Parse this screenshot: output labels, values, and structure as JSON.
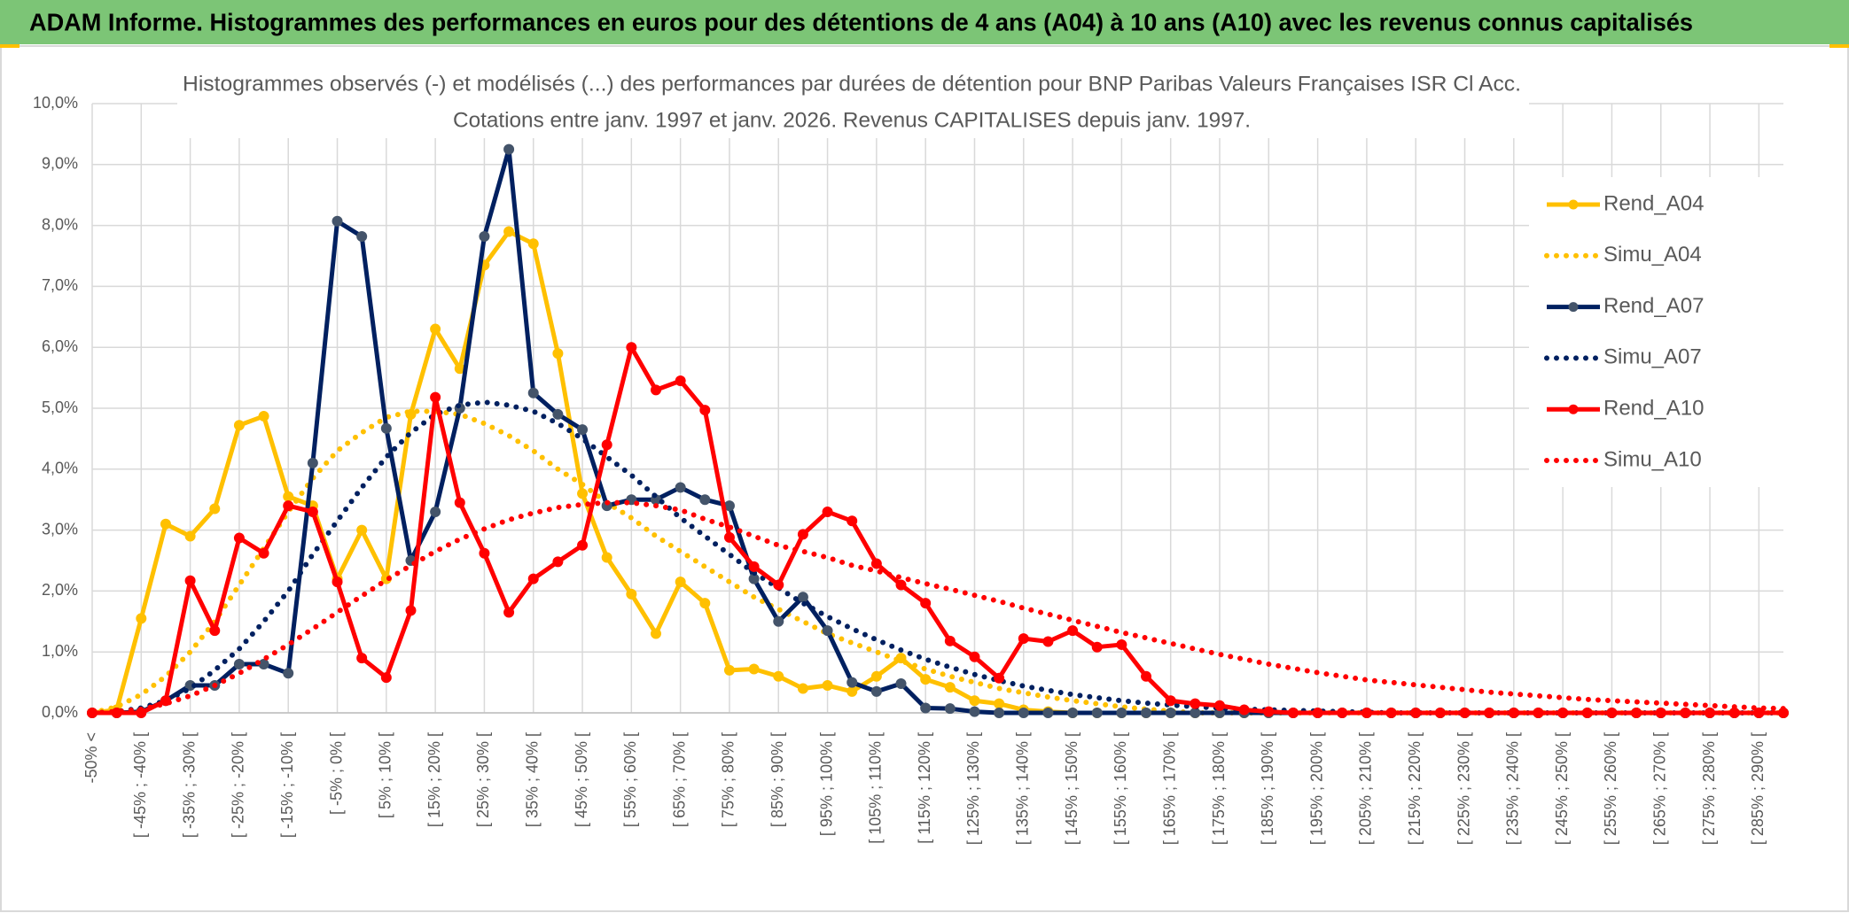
{
  "header": {
    "title": "ADAM Informe. Histogrammes des performances en euros pour des détentions de 4 ans (A04) à 10 ans (A10) avec les revenus connus capitalisés"
  },
  "chart_data": {
    "type": "line",
    "title": "Histogrammes observés (-) et modélisés (...) des performances par durées de détention pour BNP Paribas Valeurs Françaises ISR Cl Acc.",
    "subtitle": "Cotations entre janv. 1997 et janv. 2026. Revenus CAPITALISES depuis janv. 1997.",
    "categories": [
      "-50% <",
      null,
      "[ -45% ; -40% [",
      null,
      "[ -35% ; -30% [",
      null,
      "[ -25% ; -20% [",
      null,
      "[ -15% ; -10% [",
      null,
      "[ -5% ; 0% [",
      null,
      "[ 5% ; 10% [",
      null,
      "[ 15% ; 20% [",
      null,
      "[ 25% ; 30% [",
      null,
      "[ 35% ; 40% [",
      null,
      "[ 45% ; 50% [",
      null,
      "[ 55% ; 60% [",
      null,
      "[ 65% ; 70% [",
      null,
      "[ 75% ; 80% [",
      null,
      "[ 85% ; 90% [",
      null,
      "[ 95% ; 100% [",
      null,
      "[ 105% ; 110% [",
      null,
      "[ 115% ; 120% [",
      null,
      "[ 125% ; 130% [",
      null,
      "[ 135% ; 140% [",
      null,
      "[ 145% ; 150% [",
      null,
      "[ 155% ; 160% [",
      null,
      "[ 165% ; 170% [",
      null,
      "[ 175% ; 180% [",
      null,
      "[ 185% ; 190% [",
      null,
      "[ 195% ; 200% [",
      null,
      "[ 205% ; 210% [",
      null,
      "[ 215% ; 220% [",
      null,
      "[ 225% ; 230% [",
      null,
      "[ 235% ; 240% [",
      null,
      "[ 245% ; 250% [",
      null,
      "[ 255% ; 260% [",
      null,
      "[ 265% ; 270% [",
      null,
      "[ 275% ; 280% [",
      null,
      "[ 285% ; 290% [",
      null
    ],
    "series": [
      {
        "name": "Rend_A04",
        "color": "#ffc000",
        "style": "solid",
        "marker": "#ffc000",
        "values": [
          0,
          0.05,
          1.55,
          3.1,
          2.9,
          3.35,
          4.72,
          4.87,
          3.55,
          3.4,
          2.2,
          3.0,
          2.2,
          4.9,
          6.3,
          5.65,
          7.35,
          7.9,
          7.7,
          5.9,
          3.6,
          2.55,
          1.95,
          1.3,
          2.15,
          1.8,
          0.7,
          0.72,
          0.6,
          0.4,
          0.45,
          0.35,
          0.6,
          0.9,
          0.55,
          0.42,
          0.2,
          0.15,
          0.05,
          0.02,
          0,
          0,
          0,
          0,
          0,
          0,
          0,
          0,
          0,
          0,
          0,
          0,
          0,
          0,
          0,
          0,
          0,
          0,
          0,
          0,
          0,
          0,
          0,
          0,
          0,
          0,
          0,
          0,
          0,
          0
        ]
      },
      {
        "name": "Simu_A04",
        "color": "#ffc000",
        "style": "dotted",
        "values": [
          0,
          0.1,
          0.3,
          0.6,
          1.0,
          1.5,
          2.1,
          2.7,
          3.3,
          3.85,
          4.3,
          4.6,
          4.85,
          4.95,
          4.95,
          4.9,
          4.75,
          4.55,
          4.3,
          4.0,
          3.75,
          3.45,
          3.2,
          2.9,
          2.65,
          2.4,
          2.15,
          1.9,
          1.7,
          1.5,
          1.3,
          1.15,
          1.0,
          0.85,
          0.72,
          0.6,
          0.5,
          0.4,
          0.33,
          0.26,
          0.2,
          0.15,
          0.1,
          0.06,
          0.03,
          0,
          0,
          0,
          0,
          0,
          0,
          0,
          0,
          0,
          0,
          0,
          0,
          0,
          0,
          0,
          0,
          0,
          0,
          0,
          0,
          0,
          0,
          0,
          0,
          0
        ]
      },
      {
        "name": "Rend_A07",
        "color": "#002060",
        "style": "solid",
        "marker": "#44546a",
        "values": [
          0,
          0,
          0.02,
          0.2,
          0.45,
          0.45,
          0.8,
          0.8,
          0.65,
          4.1,
          8.07,
          7.82,
          4.67,
          2.5,
          3.3,
          5.0,
          7.82,
          9.25,
          5.25,
          4.9,
          4.65,
          3.4,
          3.5,
          3.5,
          3.7,
          3.5,
          3.4,
          2.2,
          1.5,
          1.9,
          1.35,
          0.5,
          0.35,
          0.48,
          0.08,
          0.07,
          0.02,
          0,
          0,
          0,
          0,
          0,
          0,
          0,
          0,
          0,
          0,
          0,
          0,
          0,
          0,
          0,
          0,
          0,
          0,
          0,
          0,
          0,
          0,
          0,
          0,
          0,
          0,
          0,
          0,
          0,
          0,
          0,
          0,
          0
        ]
      },
      {
        "name": "Simu_A07",
        "color": "#002060",
        "style": "dotted",
        "values": [
          0,
          0.02,
          0.08,
          0.2,
          0.4,
          0.7,
          1.05,
          1.5,
          2.0,
          2.6,
          3.15,
          3.7,
          4.2,
          4.6,
          4.9,
          5.05,
          5.1,
          5.05,
          4.95,
          4.75,
          4.5,
          4.2,
          3.9,
          3.55,
          3.2,
          2.9,
          2.6,
          2.3,
          2.05,
          1.8,
          1.58,
          1.38,
          1.2,
          1.03,
          0.88,
          0.75,
          0.63,
          0.53,
          0.44,
          0.37,
          0.3,
          0.25,
          0.2,
          0.16,
          0.13,
          0.1,
          0.08,
          0.06,
          0.05,
          0.04,
          0.03,
          0.02,
          0.01,
          0,
          0,
          0,
          0,
          0,
          0,
          0,
          0,
          0,
          0,
          0,
          0,
          0,
          0,
          0,
          0,
          0
        ]
      },
      {
        "name": "Rend_A10",
        "color": "#ff0000",
        "style": "solid",
        "marker": "#ff0000",
        "values": [
          0,
          0,
          0,
          0.2,
          2.17,
          1.35,
          2.87,
          2.62,
          3.4,
          3.3,
          2.15,
          0.9,
          0.58,
          1.68,
          5.18,
          3.45,
          2.62,
          1.65,
          2.2,
          2.48,
          2.75,
          4.4,
          6.0,
          5.3,
          5.45,
          4.97,
          2.88,
          2.4,
          2.1,
          2.93,
          3.3,
          3.15,
          2.45,
          2.1,
          1.8,
          1.18,
          0.92,
          0.57,
          1.22,
          1.17,
          1.35,
          1.08,
          1.12,
          0.6,
          0.2,
          0.15,
          0.12,
          0.05,
          0.02,
          0,
          0,
          0,
          0,
          0,
          0,
          0,
          0,
          0,
          0,
          0,
          0,
          0,
          0,
          0,
          0,
          0,
          0,
          0,
          0,
          0
        ]
      },
      {
        "name": "Simu_A10",
        "color": "#ff0000",
        "style": "dotted",
        "values": [
          0,
          0.02,
          0.06,
          0.15,
          0.28,
          0.45,
          0.65,
          0.88,
          1.12,
          1.38,
          1.65,
          1.92,
          2.18,
          2.42,
          2.65,
          2.85,
          3.02,
          3.17,
          3.28,
          3.37,
          3.42,
          3.45,
          3.45,
          3.4,
          3.33,
          3.18,
          3.05,
          2.9,
          2.75,
          2.65,
          2.55,
          2.42,
          2.33,
          2.22,
          2.12,
          2.03,
          1.93,
          1.83,
          1.72,
          1.62,
          1.52,
          1.42,
          1.32,
          1.23,
          1.14,
          1.05,
          0.96,
          0.88,
          0.8,
          0.73,
          0.66,
          0.6,
          0.54,
          0.5,
          0.46,
          0.42,
          0.38,
          0.34,
          0.31,
          0.28,
          0.25,
          0.22,
          0.2,
          0.18,
          0.16,
          0.14,
          0.12,
          0.1,
          0.08,
          0.07
        ]
      }
    ],
    "ylim": [
      0,
      10
    ],
    "yticks": [
      {
        "value": 0,
        "label": "0,0%"
      },
      {
        "value": 1,
        "label": "1,0%"
      },
      {
        "value": 2,
        "label": "2,0%"
      },
      {
        "value": 3,
        "label": "3,0%"
      },
      {
        "value": 4,
        "label": "4,0%"
      },
      {
        "value": 5,
        "label": "5,0%"
      },
      {
        "value": 6,
        "label": "6,0%"
      },
      {
        "value": 7,
        "label": "7,0%"
      },
      {
        "value": 8,
        "label": "8,0%"
      },
      {
        "value": 9,
        "label": "9,0%"
      },
      {
        "value": 10,
        "label": "10,0%"
      }
    ],
    "grid": true,
    "legend": "right"
  }
}
